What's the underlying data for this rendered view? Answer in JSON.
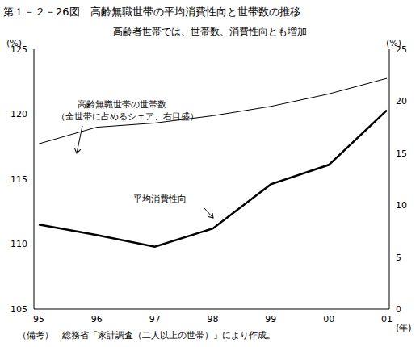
{
  "chart_data": {
    "type": "line",
    "title": "第１－２－26図　高齢無職世帯の平均消費性向と世帯数の推移",
    "subtitle": "高齢者世帯では、世帯数、消費性向とも増加",
    "categories": [
      "95",
      "96",
      "97",
      "98",
      "99",
      "00",
      "01"
    ],
    "series": [
      {
        "name": "平均消費性向",
        "color": "#000000",
        "values": [
          111.5,
          110.7,
          109.8,
          111.2,
          114.6,
          116.1,
          120.3
        ]
      },
      {
        "name": "高齢無職世帯の世帯数",
        "color": "#000000",
        "values": [
          15.9,
          17.5,
          17.9,
          18.6,
          19.5,
          20.7,
          22.2
        ],
        "axis": "y2"
      }
    ],
    "ylim": [
      105,
      125
    ],
    "yticks": [
      105,
      110,
      115,
      120,
      125
    ],
    "y2lim": [
      0,
      25
    ],
    "y2ticks": [
      0,
      5,
      10,
      15,
      20,
      25
    ],
    "y_label": "(%)",
    "y2_label": "(%)",
    "x_label": "(年)",
    "annotations": [
      "（全世帯に占めるシェア、右目盛）",
      "（備考）　総務省「家計調査（二人以上の世帯）」により作成。"
    ],
    "grid": false
  }
}
